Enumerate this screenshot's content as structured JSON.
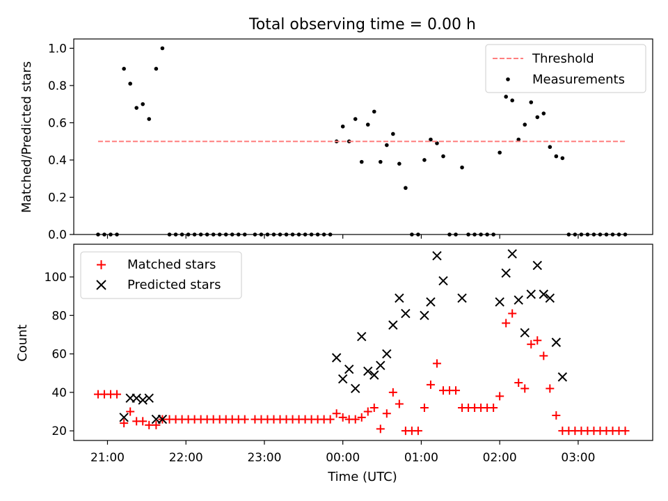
{
  "chart_data": {
    "title": "Total observing time = 0.00 h",
    "xlabel": "Time (UTC)",
    "x_unit": "hours after 21:00 UTC (continuing past midnight)",
    "xlim": [
      -0.43,
      6.95
    ],
    "x_ticks": [
      {
        "value": 0,
        "label": "21:00"
      },
      {
        "value": 1,
        "label": "22:00"
      },
      {
        "value": 2,
        "label": "23:00"
      },
      {
        "value": 3,
        "label": "00:00"
      },
      {
        "value": 4,
        "label": "01:00"
      },
      {
        "value": 5,
        "label": "02:00"
      },
      {
        "value": 6,
        "label": "03:00"
      }
    ],
    "panels": [
      {
        "type": "scatter",
        "ylabel": "Matched/Predicted stars",
        "ylim": [
          0.0,
          1.05
        ],
        "y_ticks": [
          "0.0",
          "0.2",
          "0.4",
          "0.6",
          "0.8",
          "1.0"
        ],
        "legend": {
          "position": "top-right",
          "entries": [
            "Threshold",
            "Measurements"
          ]
        },
        "threshold": {
          "name": "Threshold",
          "value": 0.5,
          "x_range": [
            -0.12,
            6.62
          ],
          "color": "#ff7f7f",
          "style": "dashed"
        },
        "measurements": {
          "name": "Measurements",
          "color": "#000000",
          "points": [
            [
              -0.12,
              0.0
            ],
            [
              -0.04,
              0.0
            ],
            [
              0.04,
              0.0
            ],
            [
              0.12,
              0.0
            ],
            [
              0.21,
              0.89
            ],
            [
              0.29,
              0.81
            ],
            [
              0.37,
              0.68
            ],
            [
              0.45,
              0.7
            ],
            [
              0.53,
              0.62
            ],
            [
              0.62,
              0.89
            ],
            [
              0.7,
              1.0
            ],
            [
              0.79,
              0.0
            ],
            [
              0.87,
              0.0
            ],
            [
              0.95,
              0.0
            ],
            [
              1.03,
              0.0
            ],
            [
              1.11,
              0.0
            ],
            [
              1.19,
              0.0
            ],
            [
              1.27,
              0.0
            ],
            [
              1.35,
              0.0
            ],
            [
              1.43,
              0.0
            ],
            [
              1.51,
              0.0
            ],
            [
              1.59,
              0.0
            ],
            [
              1.67,
              0.0
            ],
            [
              1.75,
              0.0
            ],
            [
              1.88,
              0.0
            ],
            [
              1.96,
              0.0
            ],
            [
              2.04,
              0.0
            ],
            [
              2.12,
              0.0
            ],
            [
              2.2,
              0.0
            ],
            [
              2.28,
              0.0
            ],
            [
              2.36,
              0.0
            ],
            [
              2.44,
              0.0
            ],
            [
              2.52,
              0.0
            ],
            [
              2.6,
              0.0
            ],
            [
              2.68,
              0.0
            ],
            [
              2.76,
              0.0
            ],
            [
              2.84,
              0.0
            ],
            [
              2.92,
              0.5
            ],
            [
              3.0,
              0.58
            ],
            [
              3.08,
              0.5
            ],
            [
              3.16,
              0.62
            ],
            [
              3.24,
              0.39
            ],
            [
              3.32,
              0.59
            ],
            [
              3.4,
              0.66
            ],
            [
              3.48,
              0.39
            ],
            [
              3.56,
              0.48
            ],
            [
              3.64,
              0.54
            ],
            [
              3.72,
              0.38
            ],
            [
              3.8,
              0.25
            ],
            [
              3.88,
              0.0
            ],
            [
              3.96,
              0.0
            ],
            [
              4.04,
              0.4
            ],
            [
              4.12,
              0.51
            ],
            [
              4.2,
              0.49
            ],
            [
              4.28,
              0.42
            ],
            [
              4.36,
              0.0
            ],
            [
              4.44,
              0.0
            ],
            [
              4.52,
              0.36
            ],
            [
              4.6,
              0.0
            ],
            [
              4.68,
              0.0
            ],
            [
              4.76,
              0.0
            ],
            [
              4.84,
              0.0
            ],
            [
              4.92,
              0.0
            ],
            [
              5.0,
              0.44
            ],
            [
              5.08,
              0.74
            ],
            [
              5.16,
              0.72
            ],
            [
              5.24,
              0.51
            ],
            [
              5.32,
              0.59
            ],
            [
              5.4,
              0.71
            ],
            [
              5.48,
              0.63
            ],
            [
              5.56,
              0.65
            ],
            [
              5.64,
              0.47
            ],
            [
              5.72,
              0.42
            ],
            [
              5.8,
              0.41
            ],
            [
              5.88,
              0.0
            ],
            [
              5.96,
              0.0
            ],
            [
              6.04,
              0.0
            ],
            [
              6.12,
              0.0
            ],
            [
              6.2,
              0.0
            ],
            [
              6.28,
              0.0
            ],
            [
              6.36,
              0.0
            ],
            [
              6.44,
              0.0
            ],
            [
              6.52,
              0.0
            ],
            [
              6.6,
              0.0
            ]
          ]
        }
      },
      {
        "type": "scatter",
        "ylabel": "Count",
        "ylim": [
          15,
          117
        ],
        "y_ticks": [
          "20",
          "40",
          "60",
          "80",
          "100"
        ],
        "legend": {
          "position": "top-left",
          "entries": [
            "Matched stars",
            "Predicted stars"
          ]
        },
        "series": [
          {
            "name": "Matched stars",
            "marker": "+",
            "color": "#ff0000",
            "points": [
              [
                -0.12,
                39
              ],
              [
                -0.04,
                39
              ],
              [
                0.04,
                39
              ],
              [
                0.12,
                39
              ],
              [
                0.21,
                24
              ],
              [
                0.29,
                30
              ],
              [
                0.37,
                25
              ],
              [
                0.45,
                25
              ],
              [
                0.53,
                23
              ],
              [
                0.62,
                23
              ],
              [
                0.7,
                26
              ],
              [
                0.79,
                26
              ],
              [
                0.87,
                26
              ],
              [
                0.95,
                26
              ],
              [
                1.03,
                26
              ],
              [
                1.11,
                26
              ],
              [
                1.19,
                26
              ],
              [
                1.27,
                26
              ],
              [
                1.35,
                26
              ],
              [
                1.43,
                26
              ],
              [
                1.51,
                26
              ],
              [
                1.59,
                26
              ],
              [
                1.67,
                26
              ],
              [
                1.75,
                26
              ],
              [
                1.88,
                26
              ],
              [
                1.96,
                26
              ],
              [
                2.04,
                26
              ],
              [
                2.12,
                26
              ],
              [
                2.2,
                26
              ],
              [
                2.28,
                26
              ],
              [
                2.36,
                26
              ],
              [
                2.44,
                26
              ],
              [
                2.52,
                26
              ],
              [
                2.6,
                26
              ],
              [
                2.68,
                26
              ],
              [
                2.76,
                26
              ],
              [
                2.84,
                26
              ],
              [
                2.92,
                29
              ],
              [
                3.0,
                27
              ],
              [
                3.08,
                26
              ],
              [
                3.16,
                26
              ],
              [
                3.24,
                27
              ],
              [
                3.32,
                30
              ],
              [
                3.4,
                32
              ],
              [
                3.48,
                21
              ],
              [
                3.56,
                29
              ],
              [
                3.64,
                40
              ],
              [
                3.72,
                34
              ],
              [
                3.8,
                20
              ],
              [
                3.88,
                20
              ],
              [
                3.96,
                20
              ],
              [
                4.04,
                32
              ],
              [
                4.12,
                44
              ],
              [
                4.2,
                55
              ],
              [
                4.28,
                41
              ],
              [
                4.36,
                41
              ],
              [
                4.44,
                41
              ],
              [
                4.52,
                32
              ],
              [
                4.6,
                32
              ],
              [
                4.68,
                32
              ],
              [
                4.76,
                32
              ],
              [
                4.84,
                32
              ],
              [
                4.92,
                32
              ],
              [
                5.0,
                38
              ],
              [
                5.08,
                76
              ],
              [
                5.16,
                81
              ],
              [
                5.24,
                45
              ],
              [
                5.32,
                42
              ],
              [
                5.4,
                65
              ],
              [
                5.48,
                67
              ],
              [
                5.56,
                59
              ],
              [
                5.64,
                42
              ],
              [
                5.72,
                28
              ],
              [
                5.8,
                20
              ],
              [
                5.88,
                20
              ],
              [
                5.96,
                20
              ],
              [
                6.04,
                20
              ],
              [
                6.12,
                20
              ],
              [
                6.2,
                20
              ],
              [
                6.28,
                20
              ],
              [
                6.36,
                20
              ],
              [
                6.44,
                20
              ],
              [
                6.52,
                20
              ],
              [
                6.6,
                20
              ]
            ]
          },
          {
            "name": "Predicted stars",
            "marker": "x",
            "color": "#000000",
            "points": [
              [
                0.21,
                27
              ],
              [
                0.29,
                37
              ],
              [
                0.37,
                37
              ],
              [
                0.45,
                36
              ],
              [
                0.53,
                37
              ],
              [
                0.62,
                26
              ],
              [
                0.7,
                26
              ],
              [
                2.92,
                58
              ],
              [
                3.0,
                47
              ],
              [
                3.08,
                52
              ],
              [
                3.16,
                42
              ],
              [
                3.24,
                69
              ],
              [
                3.32,
                51
              ],
              [
                3.4,
                49
              ],
              [
                3.48,
                54
              ],
              [
                3.56,
                60
              ],
              [
                3.64,
                75
              ],
              [
                3.72,
                89
              ],
              [
                3.8,
                81
              ],
              [
                4.04,
                80
              ],
              [
                4.12,
                87
              ],
              [
                4.2,
                111
              ],
              [
                4.28,
                98
              ],
              [
                4.52,
                89
              ],
              [
                5.0,
                87
              ],
              [
                5.08,
                102
              ],
              [
                5.16,
                112
              ],
              [
                5.24,
                88
              ],
              [
                5.32,
                71
              ],
              [
                5.4,
                91
              ],
              [
                5.48,
                106
              ],
              [
                5.56,
                91
              ],
              [
                5.64,
                89
              ],
              [
                5.72,
                66
              ],
              [
                5.8,
                48
              ]
            ]
          }
        ]
      }
    ]
  }
}
